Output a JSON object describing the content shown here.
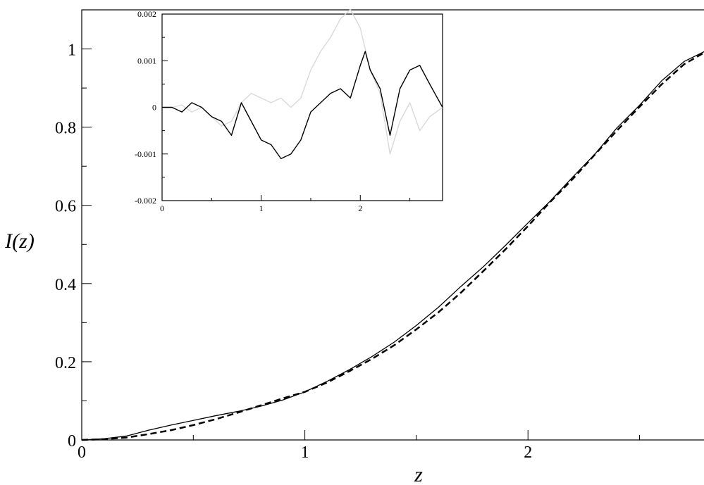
{
  "chart_data": [
    {
      "type": "line",
      "id": "main",
      "xlabel": "z",
      "ylabel": "I(z)",
      "xlim": [
        0,
        2.83
      ],
      "ylim": [
        0,
        1.1
      ],
      "xticks": [
        0,
        1,
        2
      ],
      "yticks": [
        0,
        0.2,
        0.4,
        0.6,
        0.8,
        1
      ],
      "xtick_labels": [
        "0",
        "1",
        "2"
      ],
      "ytick_labels": [
        "0",
        "0.2",
        "0.4",
        "0.6",
        "0.8",
        "1"
      ],
      "grid": false,
      "series": [
        {
          "style": "solid",
          "color": "#000000",
          "x": [
            0,
            0.1,
            0.2,
            0.3,
            0.4,
            0.5,
            0.6,
            0.7,
            0.8,
            0.9,
            1.0,
            1.1,
            1.2,
            1.3,
            1.4,
            1.5,
            1.6,
            1.7,
            1.8,
            1.9,
            2.0,
            2.1,
            2.2,
            2.3,
            2.4,
            2.5,
            2.6,
            2.7,
            2.8,
            2.83
          ],
          "y": [
            0,
            0.003,
            0.01,
            0.025,
            0.038,
            0.05,
            0.062,
            0.073,
            0.086,
            0.102,
            0.123,
            0.15,
            0.18,
            0.213,
            0.25,
            0.293,
            0.34,
            0.393,
            0.443,
            0.498,
            0.555,
            0.611,
            0.672,
            0.731,
            0.799,
            0.856,
            0.919,
            0.968,
            0.996,
            1.0
          ]
        },
        {
          "style": "dashed",
          "color": "#000000",
          "x": [
            0,
            0.1,
            0.2,
            0.3,
            0.4,
            0.5,
            0.6,
            0.7,
            0.8,
            0.9,
            1.0,
            1.1,
            1.2,
            1.3,
            1.4,
            1.5,
            1.6,
            1.7,
            1.8,
            1.9,
            2.0,
            2.1,
            2.2,
            2.3,
            2.4,
            2.5,
            2.6,
            2.7,
            2.8,
            2.83
          ],
          "y": [
            0,
            0.002,
            0.006,
            0.015,
            0.025,
            0.038,
            0.053,
            0.07,
            0.088,
            0.106,
            0.123,
            0.147,
            0.176,
            0.207,
            0.242,
            0.283,
            0.327,
            0.377,
            0.432,
            0.488,
            0.547,
            0.609,
            0.667,
            0.73,
            0.792,
            0.852,
            0.91,
            0.961,
            0.994,
            1.0
          ]
        }
      ]
    },
    {
      "type": "line",
      "id": "inset",
      "xlim": [
        0,
        2.83
      ],
      "ylim": [
        -0.002,
        0.002
      ],
      "xticks": [
        0,
        1,
        2
      ],
      "yticks": [
        -0.002,
        -0.001,
        0,
        0.001,
        0.002
      ],
      "xtick_labels": [
        "0",
        "1",
        "2"
      ],
      "ytick_labels": [
        "-0.002",
        "-0.001",
        "0",
        "0.001",
        "0.002"
      ],
      "grid": false,
      "series": [
        {
          "color": "#d9d9d9",
          "x": [
            0,
            0.1,
            0.2,
            0.3,
            0.4,
            0.5,
            0.6,
            0.7,
            0.8,
            0.9,
            1.0,
            1.1,
            1.2,
            1.3,
            1.4,
            1.5,
            1.6,
            1.7,
            1.8,
            1.9,
            2.0,
            2.1,
            2.2,
            2.3,
            2.4,
            2.5,
            2.6,
            2.7,
            2.83
          ],
          "y": [
            0,
            0.0,
            5e-05,
            -0.0001,
            0.0,
            -0.0002,
            -0.0004,
            -0.0003,
            0.0001,
            0.0003,
            0.0002,
            0.0001,
            0.0002,
            0.0,
            0.0002,
            0.0008,
            0.0012,
            0.0015,
            0.0019,
            0.0021,
            0.0017,
            0.0008,
            0.0003,
            -0.001,
            -0.0003,
            0.0001,
            -0.0005,
            -0.0002,
            0.0
          ]
        },
        {
          "color": "#000000",
          "x": [
            0,
            0.1,
            0.2,
            0.3,
            0.4,
            0.5,
            0.6,
            0.7,
            0.8,
            0.9,
            1.0,
            1.1,
            1.2,
            1.3,
            1.4,
            1.5,
            1.6,
            1.7,
            1.8,
            1.9,
            2.0,
            2.05,
            2.1,
            2.2,
            2.3,
            2.4,
            2.5,
            2.6,
            2.7,
            2.83
          ],
          "y": [
            0,
            0.0,
            -0.0001,
            0.0001,
            0.0,
            -0.0002,
            -0.0003,
            -0.0006,
            0.0001,
            -0.0003,
            -0.0007,
            -0.0008,
            -0.0011,
            -0.001,
            -0.0007,
            -0.0001,
            0.0001,
            0.0003,
            0.0004,
            0.0002,
            0.0009,
            0.0012,
            0.0008,
            0.0004,
            -0.0006,
            0.0004,
            0.0008,
            0.0009,
            0.0005,
            0.0
          ]
        }
      ]
    }
  ]
}
